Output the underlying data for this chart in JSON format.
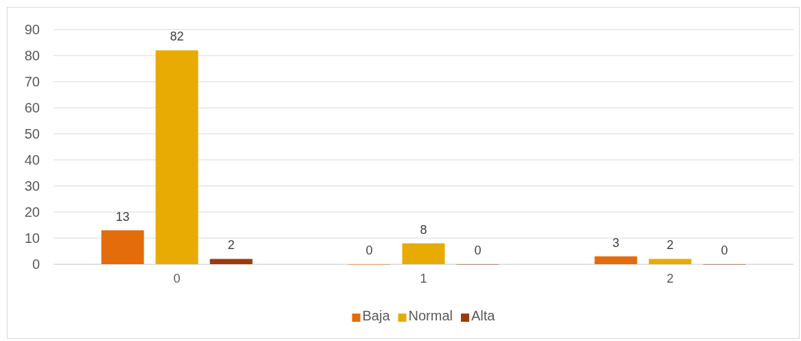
{
  "chart_data": {
    "type": "bar",
    "categories": [
      "0",
      "1",
      "2"
    ],
    "series": [
      {
        "name": "Baja",
        "color": "#e46c0a",
        "values": [
          13,
          0,
          3
        ]
      },
      {
        "name": "Normal",
        "color": "#e8ab03",
        "values": [
          82,
          8,
          2
        ]
      },
      {
        "name": "Alta",
        "color": "#9c3a0c",
        "values": [
          2,
          0,
          0
        ]
      }
    ],
    "ylim": [
      0,
      90
    ],
    "yticks": [
      0,
      10,
      20,
      30,
      40,
      50,
      60,
      70,
      80,
      90
    ],
    "grid": "y",
    "legend": "bottom",
    "data_labels": true
  }
}
